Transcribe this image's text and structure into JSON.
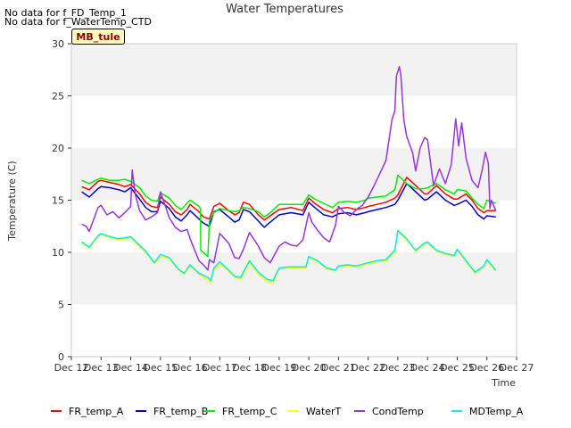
{
  "notes": [
    "No data for f_FD_Temp_1",
    "No data for f_WaterTemp_CTD"
  ],
  "site_tag": "MB_tule",
  "chart_data": {
    "type": "line",
    "title": "Water Temperatures",
    "xlabel": "Time",
    "ylabel": "Temperature (C)",
    "ylim": [
      0,
      30
    ],
    "xlim": [
      12,
      27
    ],
    "grid": true,
    "legend_placement": "bottom",
    "x_ticks": [
      12,
      13,
      14,
      15,
      16,
      17,
      18,
      19,
      20,
      21,
      22,
      23,
      24,
      25,
      26,
      27
    ],
    "x_tick_labels": [
      "Dec 12",
      "Dec 13",
      "Dec 14",
      "Dec 15",
      "Dec 16",
      "Dec 17",
      "Dec 18",
      "Dec 19",
      "Dec 20",
      "Dec 21",
      "Dec 22",
      "Dec 23",
      "Dec 24",
      "Dec 25",
      "Dec 26",
      "Dec 27"
    ],
    "y_ticks": [
      0,
      5,
      10,
      15,
      20,
      25,
      30
    ],
    "series": [
      {
        "name": "FR_temp_A",
        "color": "#ff0000",
        "x": [
          12.35,
          12.6,
          12.9,
          13.0,
          13.3,
          13.6,
          13.8,
          14.0,
          14.3,
          14.5,
          14.7,
          14.9,
          15.0,
          15.3,
          15.5,
          15.7,
          15.9,
          16.0,
          16.3,
          16.45,
          16.65,
          16.8,
          17.0,
          17.3,
          17.5,
          17.65,
          17.8,
          18.0,
          18.3,
          18.5,
          18.7,
          19.0,
          19.4,
          19.8,
          20.0,
          20.2,
          20.5,
          20.8,
          21.0,
          21.3,
          21.6,
          21.9,
          22.0,
          22.3,
          22.6,
          22.9,
          23.0,
          23.3,
          23.6,
          23.9,
          24.0,
          24.3,
          24.6,
          24.9,
          25.0,
          25.3,
          25.5,
          25.7,
          25.9,
          26.0,
          26.3
        ],
        "y": [
          16.3,
          16.0,
          16.8,
          16.9,
          16.7,
          16.5,
          16.3,
          16.5,
          15.6,
          14.8,
          14.4,
          14.3,
          15.3,
          14.6,
          13.9,
          13.6,
          14.1,
          14.6,
          13.9,
          13.4,
          13.2,
          14.4,
          14.7,
          14.0,
          13.6,
          13.8,
          14.8,
          14.6,
          13.6,
          13.1,
          13.5,
          14.1,
          14.3,
          14.0,
          15.2,
          14.7,
          14.1,
          13.8,
          14.2,
          14.3,
          14.1,
          14.3,
          14.4,
          14.6,
          14.8,
          15.2,
          15.5,
          17.2,
          16.4,
          15.6,
          15.6,
          16.4,
          15.6,
          15.1,
          15.1,
          15.6,
          15.0,
          14.2,
          13.8,
          14.0,
          14.0
        ]
      },
      {
        "name": "FR_temp_B",
        "color": "#0000cc",
        "x": [
          12.35,
          12.6,
          12.9,
          13.0,
          13.3,
          13.6,
          13.8,
          14.0,
          14.3,
          14.5,
          14.7,
          14.9,
          15.0,
          15.3,
          15.5,
          15.7,
          15.9,
          16.0,
          16.3,
          16.45,
          16.65,
          16.8,
          17.0,
          17.3,
          17.5,
          17.65,
          17.8,
          18.0,
          18.3,
          18.5,
          18.7,
          19.0,
          19.4,
          19.8,
          20.0,
          20.2,
          20.5,
          20.8,
          21.0,
          21.3,
          21.6,
          21.9,
          22.0,
          22.3,
          22.6,
          22.9,
          23.0,
          23.3,
          23.6,
          23.9,
          24.0,
          24.3,
          24.6,
          24.9,
          25.0,
          25.3,
          25.5,
          25.7,
          25.9,
          26.0,
          26.3
        ],
        "y": [
          15.8,
          15.3,
          16.1,
          16.3,
          16.2,
          16.0,
          15.8,
          16.2,
          15.1,
          14.3,
          13.9,
          13.9,
          14.9,
          14.2,
          13.4,
          13.0,
          13.6,
          14.0,
          13.2,
          12.8,
          12.5,
          13.9,
          14.1,
          13.4,
          12.9,
          13.1,
          14.1,
          13.9,
          13.0,
          12.4,
          12.9,
          13.6,
          13.8,
          13.6,
          14.8,
          14.3,
          13.6,
          13.4,
          13.7,
          13.8,
          13.6,
          13.8,
          13.9,
          14.1,
          14.3,
          14.6,
          15.0,
          16.6,
          15.8,
          15.0,
          15.1,
          15.8,
          15.0,
          14.5,
          14.6,
          15.0,
          14.4,
          13.6,
          13.2,
          13.5,
          13.4
        ]
      },
      {
        "name": "FR_temp_C",
        "color": "#00ee00",
        "x": [
          12.35,
          12.6,
          12.9,
          13.0,
          13.3,
          13.6,
          13.8,
          14.0,
          14.3,
          14.5,
          14.7,
          14.9,
          15.0,
          15.3,
          15.5,
          15.7,
          15.9,
          16.0,
          16.3,
          16.35,
          16.36,
          16.6,
          16.65,
          16.8,
          17.0,
          17.3,
          17.5,
          17.65,
          17.8,
          18.0,
          18.3,
          18.5,
          18.7,
          19.0,
          19.4,
          19.8,
          20.0,
          20.2,
          20.5,
          20.8,
          21.0,
          21.3,
          21.6,
          21.9,
          22.0,
          22.3,
          22.6,
          22.9,
          23.0,
          23.3,
          23.6,
          23.9,
          24.0,
          24.3,
          24.6,
          24.9,
          25.0,
          25.3,
          25.5,
          25.7,
          25.9,
          26.0,
          26.3
        ],
        "y": [
          16.9,
          16.6,
          17.0,
          17.1,
          16.9,
          16.9,
          17.0,
          16.8,
          16.2,
          15.4,
          15.0,
          14.9,
          15.7,
          15.2,
          14.5,
          14.1,
          14.7,
          15.0,
          14.4,
          14.2,
          10.2,
          9.6,
          13.0,
          13.8,
          14.2,
          14.0,
          13.9,
          14.0,
          14.3,
          14.2,
          13.9,
          13.4,
          13.8,
          14.6,
          14.6,
          14.6,
          15.5,
          15.1,
          14.7,
          14.3,
          14.8,
          14.9,
          14.8,
          15.0,
          15.2,
          15.3,
          15.4,
          16.0,
          17.4,
          16.6,
          16.1,
          16.1,
          16.2,
          16.6,
          16.0,
          15.6,
          16.0,
          15.9,
          15.2,
          14.6,
          14.2,
          15.0,
          14.7
        ]
      },
      {
        "name": "WaterT",
        "color": "#ffff00",
        "x": [
          12.35,
          12.6,
          12.9,
          13.0,
          13.3,
          13.6,
          14.0,
          14.5,
          14.8,
          15.0,
          15.3,
          15.6,
          15.8,
          16.0,
          16.3,
          16.6,
          16.7,
          16.8,
          17.0,
          17.3,
          17.5,
          17.7,
          18.0,
          18.3,
          18.6,
          18.8,
          19.0,
          19.3,
          19.6,
          19.9,
          20.0,
          20.3,
          20.6,
          20.9,
          21.0,
          21.3,
          21.6,
          22.0,
          22.3,
          22.6,
          22.9,
          23.0,
          23.3,
          23.6,
          23.9,
          24.0,
          24.3,
          24.6,
          24.9,
          25.0,
          25.3,
          25.6,
          25.9,
          26.0,
          26.3
        ],
        "y": [
          10.9,
          10.4,
          11.5,
          11.7,
          11.4,
          11.2,
          11.4,
          10.0,
          8.9,
          9.6,
          9.4,
          8.3,
          7.9,
          8.7,
          7.9,
          7.4,
          7.1,
          8.3,
          8.9,
          8.2,
          7.6,
          7.4,
          9.0,
          7.9,
          7.2,
          7.1,
          8.4,
          8.5,
          8.5,
          8.5,
          9.5,
          9.1,
          8.4,
          8.2,
          8.6,
          8.7,
          8.6,
          8.9,
          9.1,
          9.2,
          10.1,
          12.0,
          11.2,
          10.1,
          10.8,
          10.9,
          10.1,
          9.8,
          9.6,
          10.2,
          9.1,
          8.0,
          8.6,
          9.2,
          8.2
        ]
      },
      {
        "name": "CondTemp",
        "color": "#9933dd",
        "x": [
          12.35,
          12.5,
          12.6,
          12.9,
          13.0,
          13.2,
          13.4,
          13.6,
          13.8,
          14.0,
          14.05,
          14.15,
          14.3,
          14.5,
          14.7,
          14.9,
          15.0,
          15.3,
          15.5,
          15.7,
          15.9,
          16.0,
          16.3,
          16.45,
          16.6,
          16.65,
          16.8,
          17.0,
          17.3,
          17.5,
          17.65,
          17.8,
          18.0,
          18.3,
          18.5,
          18.7,
          19.0,
          19.2,
          19.4,
          19.6,
          19.8,
          20.0,
          20.1,
          20.3,
          20.5,
          20.7,
          20.9,
          21.0,
          21.2,
          21.4,
          21.6,
          21.8,
          22.0,
          22.2,
          22.4,
          22.6,
          22.8,
          22.9,
          22.95,
          23.05,
          23.1,
          23.2,
          23.3,
          23.5,
          23.6,
          23.75,
          23.9,
          24.0,
          24.2,
          24.4,
          24.6,
          24.8,
          24.95,
          25.05,
          25.15,
          25.3,
          25.5,
          25.7,
          25.85,
          25.95,
          26.05,
          26.1,
          26.15,
          26.3
        ],
        "y": [
          12.7,
          12.5,
          12.0,
          14.3,
          14.5,
          13.6,
          13.9,
          13.3,
          13.8,
          14.4,
          17.9,
          15.6,
          14.0,
          13.1,
          13.4,
          13.8,
          15.8,
          13.3,
          12.4,
          12.0,
          12.2,
          11.3,
          9.2,
          8.8,
          8.3,
          9.3,
          9.0,
          11.8,
          10.9,
          9.5,
          9.4,
          10.3,
          11.9,
          10.6,
          9.5,
          9.0,
          10.6,
          11.0,
          10.7,
          10.6,
          11.2,
          13.8,
          12.9,
          12.1,
          11.4,
          11.0,
          12.6,
          14.4,
          13.8,
          13.5,
          14.1,
          14.5,
          15.3,
          16.4,
          17.6,
          18.8,
          22.7,
          23.6,
          26.9,
          27.8,
          27.0,
          22.7,
          21.1,
          19.5,
          17.8,
          20.0,
          21.0,
          20.8,
          16.4,
          18.0,
          16.6,
          18.4,
          22.8,
          20.2,
          22.4,
          19.0,
          16.9,
          16.2,
          18.0,
          19.6,
          18.5,
          14.2,
          15.0,
          14.0
        ]
      },
      {
        "name": "MDTemp_A",
        "color": "#00eeee",
        "x": [
          12.35,
          12.6,
          12.9,
          13.0,
          13.3,
          13.6,
          14.0,
          14.5,
          14.8,
          15.0,
          15.3,
          15.6,
          15.8,
          16.0,
          16.3,
          16.6,
          16.7,
          16.8,
          17.0,
          17.3,
          17.5,
          17.7,
          18.0,
          18.3,
          18.6,
          18.8,
          19.0,
          19.3,
          19.6,
          19.9,
          20.0,
          20.3,
          20.6,
          20.9,
          21.0,
          21.3,
          21.6,
          22.0,
          22.3,
          22.6,
          22.9,
          23.0,
          23.3,
          23.6,
          23.9,
          24.0,
          24.3,
          24.6,
          24.9,
          25.0,
          25.3,
          25.6,
          25.9,
          26.0,
          26.3
        ],
        "y": [
          11.0,
          10.5,
          11.6,
          11.8,
          11.5,
          11.3,
          11.5,
          10.1,
          9.0,
          9.8,
          9.5,
          8.4,
          8.0,
          8.8,
          8.0,
          7.6,
          7.3,
          8.5,
          9.1,
          8.3,
          7.7,
          7.6,
          9.2,
          8.1,
          7.4,
          7.3,
          8.5,
          8.6,
          8.6,
          8.6,
          9.6,
          9.2,
          8.5,
          8.3,
          8.7,
          8.8,
          8.7,
          9.0,
          9.2,
          9.3,
          10.2,
          12.1,
          11.3,
          10.2,
          10.9,
          11.0,
          10.2,
          9.9,
          9.7,
          10.3,
          9.2,
          8.1,
          8.7,
          9.3,
          8.3
        ]
      }
    ]
  }
}
